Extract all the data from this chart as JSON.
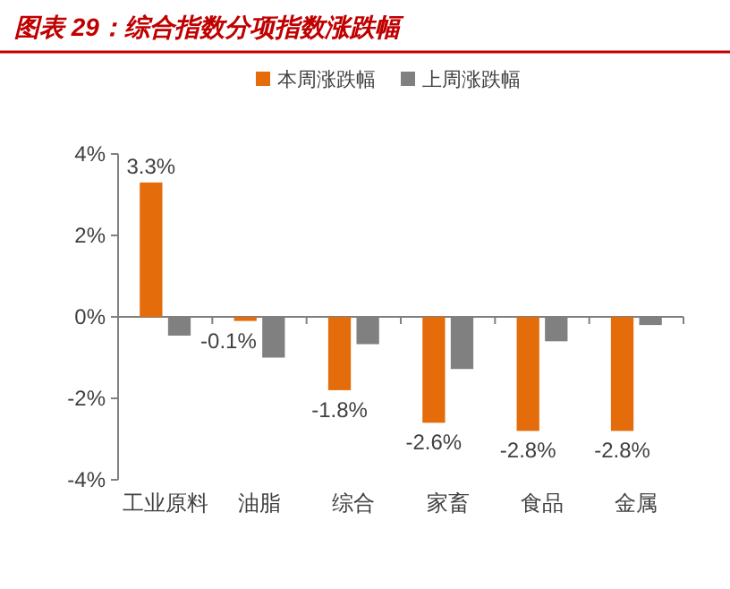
{
  "chart_data": {
    "type": "bar",
    "title": "图表 29：综合指数分项指数涨跌幅",
    "categories": [
      "工业原料",
      "油脂",
      "综合",
      "家畜",
      "食品",
      "金属"
    ],
    "series": [
      {
        "name": "本周涨跌幅",
        "color": "#e46c0a",
        "values": [
          3.3,
          -0.1,
          -1.8,
          -2.6,
          -2.8,
          -2.8
        ],
        "value_labels": [
          "3.3%",
          "-0.1%",
          "-1.8%",
          "-2.6%",
          "-2.8%",
          "-2.8%"
        ]
      },
      {
        "name": "上周涨跌幅",
        "color": "#808080",
        "values": [
          -0.46,
          -1.0,
          -0.67,
          -1.28,
          -0.6,
          -0.2
        ]
      }
    ],
    "ylim": [
      -4,
      4
    ],
    "yticks": [
      {
        "value": 4,
        "label": "4%"
      },
      {
        "value": 2,
        "label": "2%"
      },
      {
        "value": 0,
        "label": "0%"
      },
      {
        "value": -2,
        "label": "-2%"
      },
      {
        "value": -4,
        "label": "-4%"
      }
    ],
    "legend": "top"
  }
}
